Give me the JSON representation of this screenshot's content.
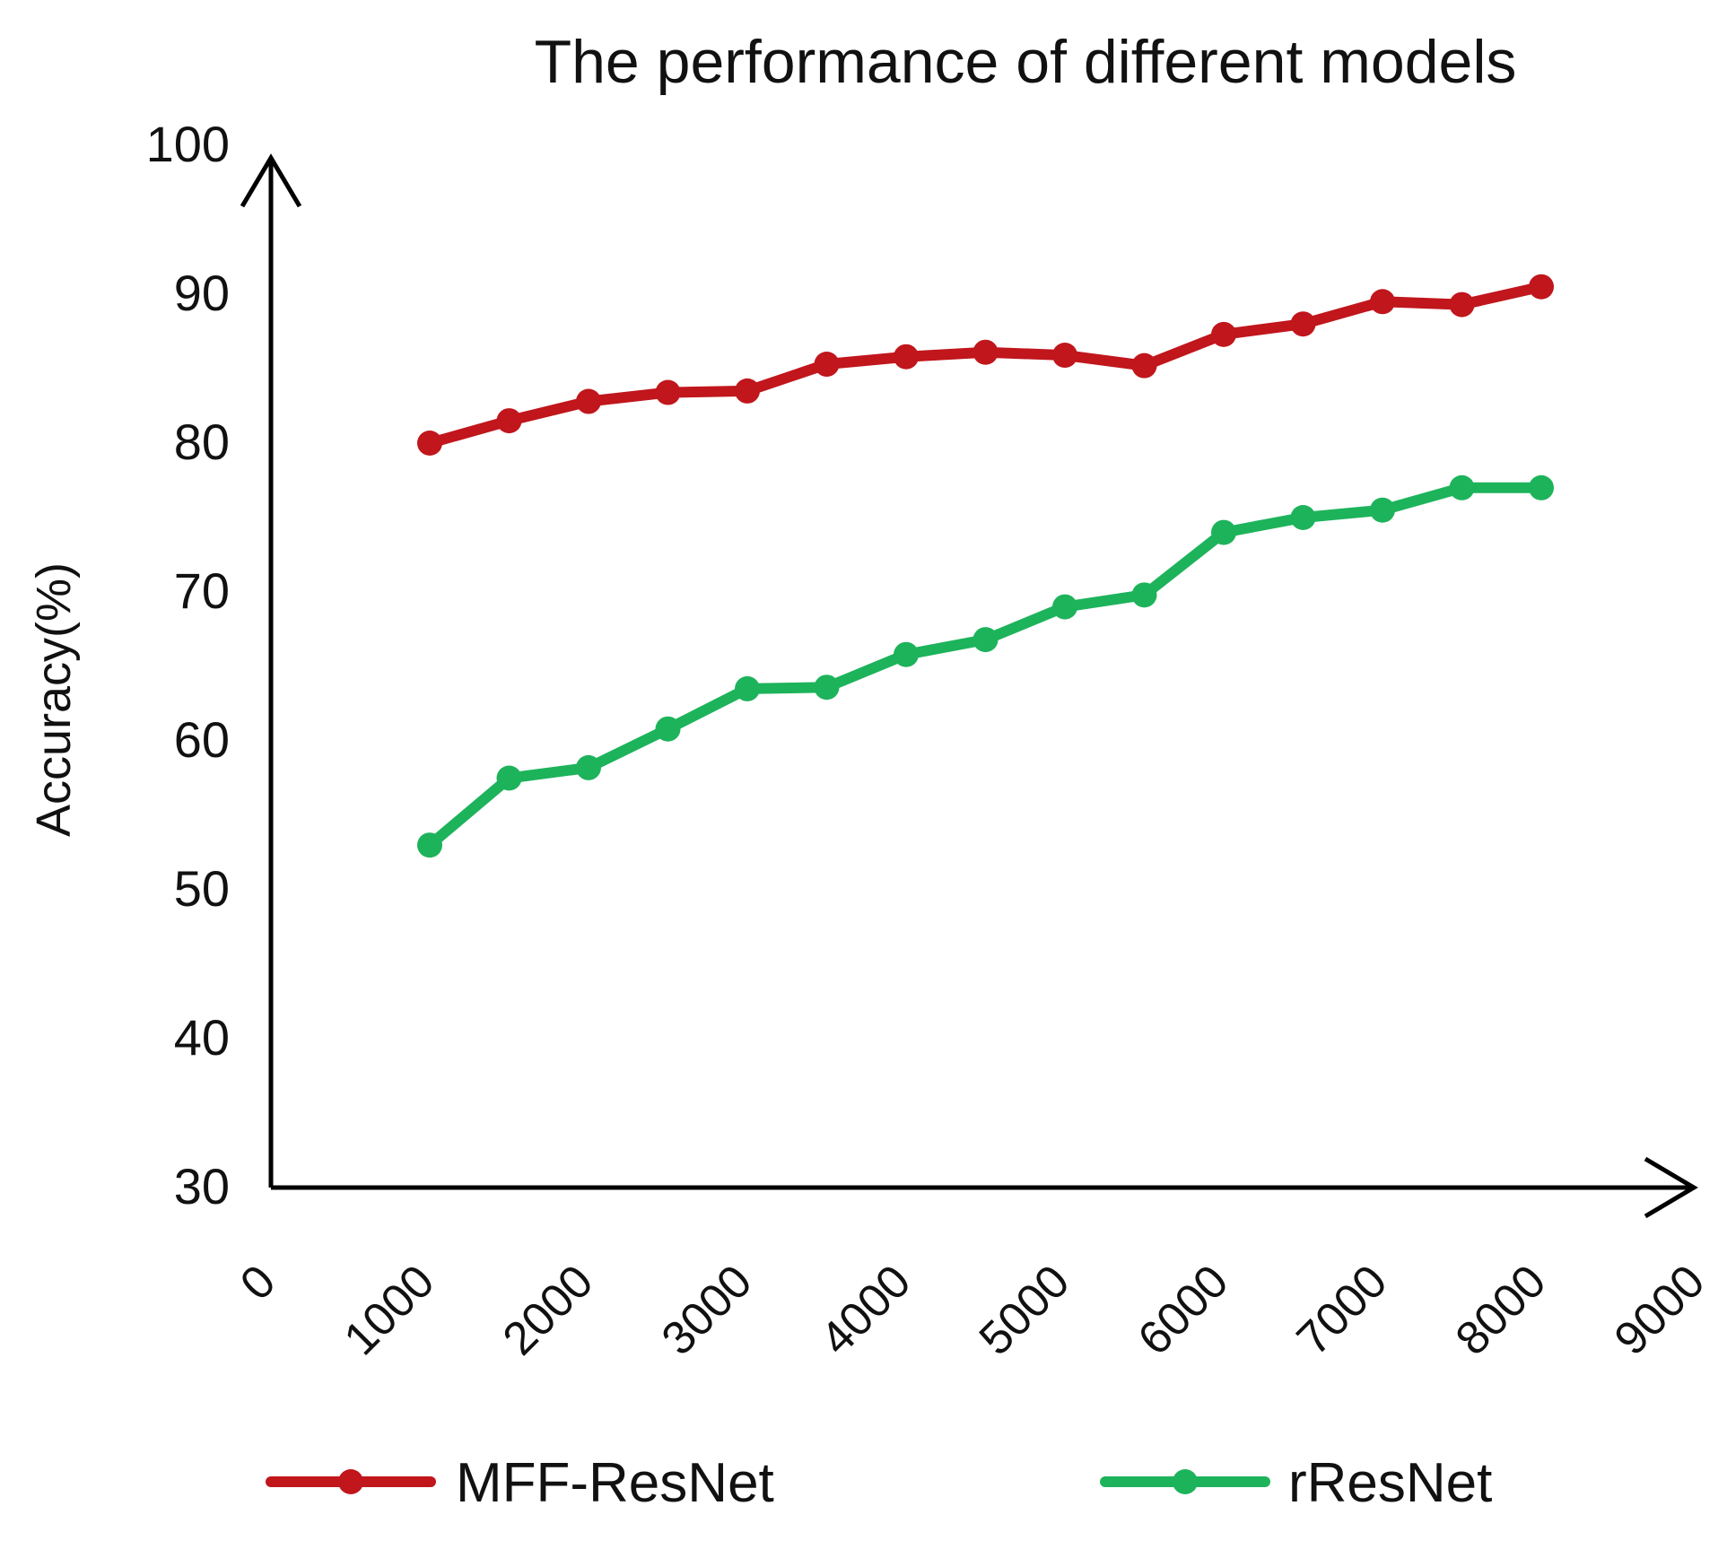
{
  "chart_data": {
    "type": "line",
    "title": "The performance of different models",
    "xlabel": "",
    "ylabel": "Accuracy(%)",
    "xlim": [
      0,
      9000
    ],
    "ylim": [
      30,
      100
    ],
    "x_ticks": [
      0,
      1000,
      2000,
      3000,
      4000,
      5000,
      6000,
      7000,
      8000,
      9000
    ],
    "y_ticks": [
      30,
      40,
      50,
      60,
      70,
      80,
      90,
      100
    ],
    "x_tick_labels": [
      "0",
      "1000",
      "2000",
      "3000",
      "4000",
      "5000",
      "6000",
      "7000",
      "8000",
      "9000"
    ],
    "y_tick_labels": [
      "30",
      "40",
      "50",
      "60",
      "70",
      "80",
      "90",
      "100"
    ],
    "grid": false,
    "legend_position": "bottom",
    "x": [
      1000,
      1500,
      2000,
      2500,
      3000,
      3500,
      4000,
      4500,
      5000,
      5500,
      6000,
      6500,
      7000,
      7500,
      8000
    ],
    "series": [
      {
        "name": "MFF-ResNet",
        "color": "#c0161c",
        "values": [
          80.0,
          81.5,
          82.8,
          83.4,
          83.5,
          85.3,
          85.8,
          86.1,
          85.9,
          85.2,
          87.3,
          88.0,
          89.5,
          89.3,
          90.5
        ]
      },
      {
        "name": "rResNet",
        "color": "#1db35b",
        "values": [
          53.0,
          57.5,
          58.2,
          60.8,
          63.5,
          63.6,
          65.8,
          66.8,
          69.0,
          69.8,
          74.0,
          75.0,
          75.5,
          77.0,
          77.0
        ]
      }
    ]
  }
}
